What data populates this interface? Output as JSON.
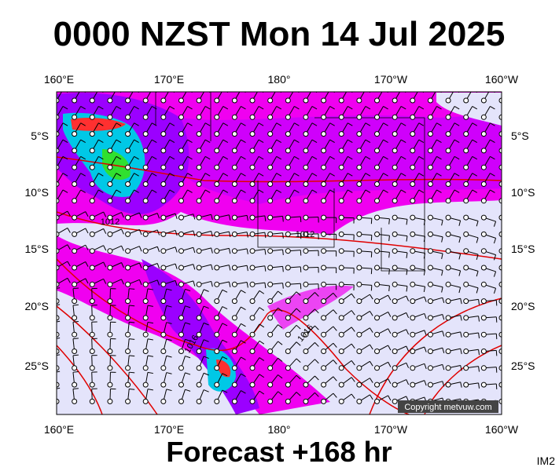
{
  "title": "0000 NZST Mon 14 Jul 2025",
  "footer": "Forecast +168 hr",
  "corner_label": "IM2",
  "copyright": "Copyright metvuw.com",
  "lon_labels_top": [
    "160°E",
    "170°E",
    "180°",
    "170°W",
    "160°W"
  ],
  "lon_labels_bottom": [
    "160°E",
    "170°E",
    "180°",
    "170°W",
    "160°W"
  ],
  "lat_labels_left": [
    "5°S",
    "10°S",
    "15°S",
    "20°S",
    "25°S"
  ],
  "lat_labels_right": [
    "5°S",
    "10°S",
    "15°S",
    "20°S",
    "25°S"
  ],
  "isobar_labels": [
    "1012",
    "1012",
    "1016",
    "1016"
  ]
}
